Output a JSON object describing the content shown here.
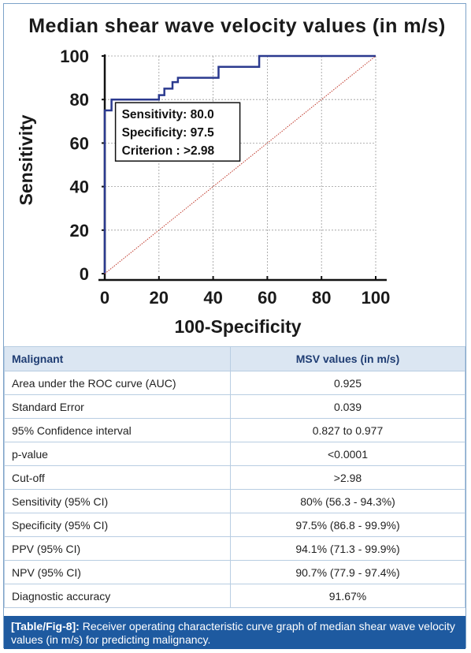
{
  "chart_data": {
    "type": "line",
    "title": "Median shear wave velocity values (in m/s)",
    "xlabel": "100-Specificity",
    "ylabel": "Sensitivity",
    "xlim": [
      0,
      100
    ],
    "ylim": [
      0,
      100
    ],
    "xticks": [
      0,
      20,
      40,
      60,
      80,
      100
    ],
    "yticks": [
      0,
      20,
      40,
      60,
      80,
      100
    ],
    "grid": true,
    "series": [
      {
        "style": "step",
        "color": "#2b3a8f",
        "x": [
          0,
          0,
          2.5,
          2.5,
          20,
          20,
          22,
          22,
          25,
          25,
          27,
          27,
          42,
          42,
          57,
          57,
          72,
          72,
          100
        ],
        "y": [
          0,
          75,
          75,
          80,
          80,
          82,
          82,
          85,
          85,
          88,
          88,
          90,
          90,
          95,
          95,
          100,
          100,
          100,
          100
        ]
      },
      {
        "style": "diagonal-reference",
        "color": "#c0392b",
        "x": [
          0,
          100
        ],
        "y": [
          0,
          100
        ]
      }
    ],
    "annotation": {
      "lines": [
        "Sensitivity: 80.0",
        "Specificity: 97.5",
        "Criterion : >2.98"
      ],
      "point": [
        2.5,
        80
      ]
    }
  },
  "table": {
    "header": [
      "Malignant",
      "MSV values (in m/s)"
    ],
    "rows": [
      [
        "Area under the ROC curve (AUC)",
        "0.925"
      ],
      [
        "Standard Error",
        "0.039"
      ],
      [
        "95% Confidence interval",
        "0.827 to 0.977"
      ],
      [
        "p-value",
        "<0.0001"
      ],
      [
        "Cut-off",
        ">2.98"
      ],
      [
        "Sensitivity (95% CI)",
        "80% (56.3 - 94.3%)"
      ],
      [
        "Specificity (95% CI)",
        "97.5% (86.8 - 99.9%)"
      ],
      [
        "PPV (95% CI)",
        "94.1% (71.3 - 99.9%)"
      ],
      [
        "NPV (95% CI)",
        "90.7% (77.9 - 97.4%)"
      ],
      [
        "Diagnostic accuracy",
        "91.67%"
      ]
    ]
  },
  "caption": {
    "label": "[Table/Fig-8]:",
    "text": " Receiver operating characteristic curve graph of median shear wave velocity values (in m/s) for predicting malignancy."
  }
}
